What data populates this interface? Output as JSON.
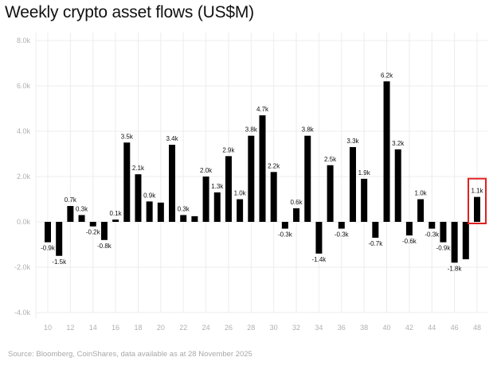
{
  "chart_data": {
    "type": "bar",
    "title": "Weekly crypto asset flows (US$M)",
    "source": "Source: Bloomberg, CoinShares, data available as at 28 November 2025",
    "xlabel": "",
    "ylabel": "",
    "ylim": [
      -4000,
      8000
    ],
    "yticks": [
      -4000,
      -2000,
      0,
      2000,
      4000,
      6000,
      8000
    ],
    "ytick_labels": [
      "-4.0k",
      "-2.0k",
      "0.0k",
      "2.0k",
      "4.0k",
      "6.0k",
      "8.0k"
    ],
    "x": [
      10,
      11,
      12,
      13,
      14,
      15,
      16,
      17,
      18,
      19,
      20,
      21,
      22,
      23,
      24,
      25,
      26,
      27,
      28,
      29,
      30,
      31,
      32,
      33,
      34,
      35,
      36,
      37,
      38,
      39,
      40,
      41,
      42,
      43,
      44,
      45,
      46,
      47,
      48
    ],
    "xtick_labels": [
      "10",
      "12",
      "14",
      "16",
      "18",
      "20",
      "22",
      "24",
      "26",
      "28",
      "30",
      "32",
      "34",
      "36",
      "38",
      "40",
      "42",
      "44",
      "46",
      "48"
    ],
    "values": [
      -900,
      -1500,
      700,
      300,
      -200,
      -800,
      100,
      3500,
      2100,
      900,
      850,
      3400,
      300,
      250,
      2000,
      1300,
      2900,
      1000,
      3800,
      4700,
      2200,
      -300,
      600,
      3800,
      -1400,
      2500,
      -300,
      3300,
      1900,
      -700,
      6200,
      3200,
      -600,
      1000,
      -300,
      -900,
      -1800,
      -1650,
      1100
    ],
    "data_labels": [
      "-0.9k",
      "-1.5k",
      "0.7k",
      "0.3k",
      "-0.2k",
      "-0.8k",
      "0.1k",
      "3.5k",
      "2.1k",
      "0.9k",
      null,
      "3.4k",
      "0.3k",
      null,
      "2.0k",
      "1.3k",
      "2.9k",
      "1.0k",
      "3.8k",
      "4.7k",
      "2.2k",
      "-0.3k",
      "0.6k",
      "3.8k",
      "-1.4k",
      "2.5k",
      "-0.3k",
      "3.3k",
      "1.9k",
      "-0.7k",
      "6.2k",
      "3.2k",
      "-0.6k",
      "1.0k",
      "-0.3k",
      "-0.9k",
      "-1.8k",
      null,
      "1.1k"
    ],
    "highlighted_week": 48,
    "grid": true,
    "legend": "none",
    "colors": {
      "bar": "#000000",
      "highlight_box": "#e02020",
      "grid": "#ececec",
      "tick": "#b0b0b0"
    }
  }
}
